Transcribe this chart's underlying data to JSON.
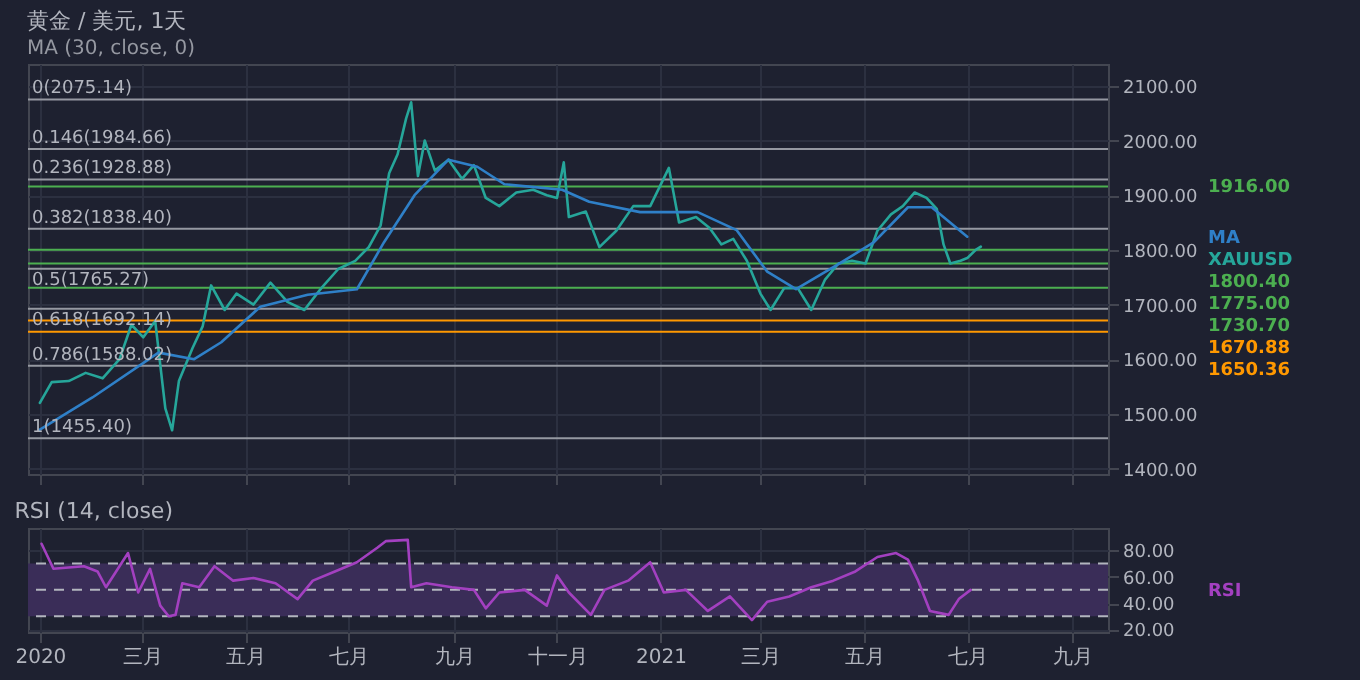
{
  "chart_data": [
    {
      "type": "line",
      "title": "黄金 / 美元, 1天",
      "subtitle": "MA (30, close, 0)",
      "series": [
        {
          "name": "XAUUSD",
          "color": "#26a69a",
          "x": [
            "2020-01-01",
            "2020-01-08",
            "2020-01-18",
            "2020-01-28",
            "2020-02-07",
            "2020-02-17",
            "2020-02-24",
            "2020-03-02",
            "2020-03-09",
            "2020-03-15",
            "2020-03-19",
            "2020-03-23",
            "2020-03-31",
            "2020-04-06",
            "2020-04-11",
            "2020-04-19",
            "2020-04-26",
            "2020-05-06",
            "2020-05-16",
            "2020-05-26",
            "2020-06-05",
            "2020-06-15",
            "2020-06-25",
            "2020-07-05",
            "2020-07-13",
            "2020-07-20",
            "2020-07-25",
            "2020-07-30",
            "2020-08-04",
            "2020-08-07",
            "2020-08-11",
            "2020-08-15",
            "2020-08-21",
            "2020-08-29",
            "2020-09-06",
            "2020-09-13",
            "2020-09-20",
            "2020-09-28",
            "2020-10-08",
            "2020-10-18",
            "2020-10-26",
            "2020-11-01",
            "2020-11-05",
            "2020-11-08",
            "2020-11-18",
            "2020-11-26",
            "2020-12-06",
            "2020-12-16",
            "2020-12-26",
            "2021-01-06",
            "2021-01-12",
            "2021-01-22",
            "2021-01-30",
            "2021-02-06",
            "2021-02-13",
            "2021-02-21",
            "2021-03-01",
            "2021-03-07",
            "2021-03-15",
            "2021-03-23",
            "2021-03-31",
            "2021-04-08",
            "2021-04-16",
            "2021-04-24",
            "2021-05-02",
            "2021-05-09",
            "2021-05-17",
            "2021-05-24",
            "2021-05-31",
            "2021-06-07",
            "2021-06-13",
            "2021-06-17",
            "2021-06-21",
            "2021-06-27",
            "2021-07-01",
            "2021-07-06",
            "2021-07-09"
          ],
          "values": [
            1520,
            1558,
            1560,
            1575,
            1565,
            1600,
            1663,
            1640,
            1670,
            1510,
            1470,
            1560,
            1620,
            1660,
            1735,
            1690,
            1720,
            1700,
            1740,
            1705,
            1690,
            1730,
            1765,
            1780,
            1805,
            1845,
            1940,
            1975,
            2040,
            2070,
            1935,
            2000,
            1945,
            1965,
            1930,
            1955,
            1895,
            1880,
            1905,
            1910,
            1900,
            1895,
            1960,
            1860,
            1870,
            1805,
            1835,
            1880,
            1880,
            1950,
            1850,
            1860,
            1840,
            1810,
            1820,
            1780,
            1720,
            1690,
            1730,
            1730,
            1690,
            1745,
            1775,
            1780,
            1775,
            1835,
            1865,
            1880,
            1905,
            1895,
            1875,
            1810,
            1775,
            1780,
            1785,
            1800,
            1806
          ]
        },
        {
          "name": "MA",
          "color": "#2f80c8",
          "x": [
            "2020-01-01",
            "2020-02-01",
            "2020-03-11",
            "2020-04-01",
            "2020-04-17",
            "2020-05-10",
            "2020-06-07",
            "2020-07-06",
            "2020-07-22",
            "2020-08-09",
            "2020-08-29",
            "2020-09-15",
            "2020-10-01",
            "2020-11-04",
            "2020-11-20",
            "2020-12-20",
            "2021-01-23",
            "2021-02-15",
            "2021-03-05",
            "2021-03-22",
            "2021-04-15",
            "2021-05-07",
            "2021-05-27",
            "2021-06-10",
            "2021-07-01"
          ],
          "values": [
            1471,
            1530,
            1612,
            1600,
            1631,
            1696,
            1718,
            1728,
            1814,
            1900,
            1965,
            1952,
            1920,
            1910,
            1888,
            1869,
            1869,
            1836,
            1760,
            1728,
            1772,
            1814,
            1878,
            1878,
            1824
          ]
        }
      ],
      "xlim": [
        "2019-12-25",
        "2021-09-22"
      ],
      "xticks": [
        {
          "value": "2020-01-01",
          "label": null
        },
        {
          "value": "2020-03-01",
          "label": null
        },
        {
          "value": "2020-05-01",
          "label": null
        },
        {
          "value": "2020-07-01",
          "label": null
        },
        {
          "value": "2020-09-01",
          "label": null
        },
        {
          "value": "2020-11-01",
          "label": null
        },
        {
          "value": "2021-01-01",
          "label": null
        },
        {
          "value": "2021-03-01",
          "label": null
        },
        {
          "value": "2021-05-01",
          "label": null
        },
        {
          "value": "2021-07-01",
          "label": null
        },
        {
          "value": "2021-09-01",
          "label": null
        }
      ],
      "ylim": [
        1390,
        2140
      ],
      "yticks": [
        {
          "value": 1400,
          "label": "1400.00"
        },
        {
          "value": 1500,
          "label": "1500.00"
        },
        {
          "value": 1600,
          "label": "1600.00"
        },
        {
          "value": 1700,
          "label": "1700.00"
        },
        {
          "value": 1800,
          "label": "1800.00"
        },
        {
          "value": 1900,
          "label": "1900.00"
        },
        {
          "value": 2000,
          "label": "2000.00"
        },
        {
          "value": 2100,
          "label": "2100.00"
        }
      ],
      "ref_lines": [
        {
          "axis": "y",
          "value": 2075.14,
          "label": "0(2075.14)",
          "color": "#9598a1"
        },
        {
          "axis": "y",
          "value": 1984.66,
          "label": "0.146(1984.66)",
          "color": "#9598a1"
        },
        {
          "axis": "y",
          "value": 1928.88,
          "label": "0.236(1928.88)",
          "color": "#9598a1"
        },
        {
          "axis": "y",
          "value": 1838.4,
          "label": "0.382(1838.40)",
          "color": "#9598a1"
        },
        {
          "axis": "y",
          "value": 1765.27,
          "label": "0.5(1765.27)",
          "color": "#9598a1"
        },
        {
          "axis": "y",
          "value": 1692.14,
          "label": "0.618(1692.14)",
          "color": "#9598a1"
        },
        {
          "axis": "y",
          "value": 1588.02,
          "label": "0.786(1588.02)",
          "color": "#9598a1"
        },
        {
          "axis": "y",
          "value": 1455.4,
          "label": "1(1455.40)",
          "color": "#9598a1"
        },
        {
          "axis": "y",
          "value": 1916,
          "label": "1916.00",
          "color": "#4caf50"
        },
        {
          "axis": "y",
          "value": 1800.4,
          "label": "1800.40",
          "color": "#4caf50"
        },
        {
          "axis": "y",
          "value": 1775,
          "label": "1775.00",
          "color": "#4caf50"
        },
        {
          "axis": "y",
          "value": 1730.7,
          "label": "1730.70",
          "color": "#4caf50"
        },
        {
          "axis": "y",
          "value": 1670.88,
          "label": "1670.88",
          "color": "#ff9800"
        },
        {
          "axis": "y",
          "value": 1650.36,
          "label": "1650.36",
          "color": "#ff9800"
        }
      ],
      "grid": true,
      "tick_labels": "y",
      "legend": false
    },
    {
      "type": "line",
      "title": "RSI (14, close)",
      "series": [
        {
          "name": "RSI",
          "color": "#a340c0",
          "x": [
            "2020-01-02",
            "2020-01-09",
            "2020-01-27",
            "2020-02-04",
            "2020-02-09",
            "2020-02-22",
            "2020-02-28",
            "2020-03-06",
            "2020-03-12",
            "2020-03-17",
            "2020-03-21",
            "2020-03-25",
            "2020-04-04",
            "2020-04-13",
            "2020-04-24",
            "2020-05-06",
            "2020-05-19",
            "2020-06-01",
            "2020-06-10",
            "2020-06-23",
            "2020-07-06",
            "2020-07-18",
            "2020-07-23",
            "2020-08-05",
            "2020-08-07",
            "2020-08-16",
            "2020-08-31",
            "2020-09-13",
            "2020-09-20",
            "2020-09-28",
            "2020-10-13",
            "2020-10-26",
            "2020-11-01",
            "2020-11-08",
            "2020-11-21",
            "2020-11-29",
            "2020-12-13",
            "2020-12-26",
            "2021-01-03",
            "2021-01-16",
            "2021-01-29",
            "2021-02-11",
            "2021-02-24",
            "2021-03-05",
            "2021-03-18",
            "2021-03-31",
            "2021-04-13",
            "2021-04-26",
            "2021-05-09",
            "2021-05-20",
            "2021-05-27",
            "2021-06-02",
            "2021-06-09",
            "2021-06-20",
            "2021-06-26",
            "2021-07-03"
          ],
          "values": [
            85,
            66,
            68,
            64,
            52,
            78,
            48,
            66,
            38,
            30,
            31,
            55,
            52,
            68,
            57,
            59,
            55,
            43,
            57,
            64,
            71,
            82,
            87,
            88,
            52,
            55,
            52,
            50,
            36,
            48,
            50,
            38,
            61,
            48,
            31,
            50,
            57,
            71,
            48,
            50,
            34,
            45,
            27,
            41,
            45,
            52,
            57,
            64,
            75,
            78,
            73,
            57,
            34,
            31,
            43,
            50
          ]
        }
      ],
      "xlim": [
        "2019-12-25",
        "2021-09-22"
      ],
      "xticks": [
        {
          "value": "2020-01-01",
          "label": "2020"
        },
        {
          "value": "2020-03-01",
          "label": "三月"
        },
        {
          "value": "2020-05-01",
          "label": "五月"
        },
        {
          "value": "2020-07-01",
          "label": "七月"
        },
        {
          "value": "2020-09-01",
          "label": "九月"
        },
        {
          "value": "2020-11-01",
          "label": "十一月"
        },
        {
          "value": "2021-01-01",
          "label": "2021"
        },
        {
          "value": "2021-03-01",
          "label": "三月"
        },
        {
          "value": "2021-05-01",
          "label": "五月"
        },
        {
          "value": "2021-07-01",
          "label": "七月"
        },
        {
          "value": "2021-09-01",
          "label": "九月"
        }
      ],
      "ylim": [
        18,
        97
      ],
      "yticks": [
        {
          "value": 20,
          "label": "20.00"
        },
        {
          "value": 40,
          "label": "40.00"
        },
        {
          "value": 60,
          "label": "60.00"
        },
        {
          "value": 80,
          "label": "80.00"
        }
      ],
      "ref_lines": [
        {
          "axis": "y",
          "value": 70,
          "color": "#b2b5be",
          "line_style": "dashed"
        },
        {
          "axis": "y",
          "value": 50,
          "color": "#b2b5be",
          "line_style": "dashed"
        },
        {
          "axis": "y",
          "value": 30,
          "color": "#b2b5be",
          "line_style": "dashed"
        }
      ],
      "bands": [
        {
          "axis": "y",
          "from": 30,
          "to": 70,
          "color": "#3a2d58"
        }
      ],
      "grid": true,
      "legend": false
    }
  ]
}
